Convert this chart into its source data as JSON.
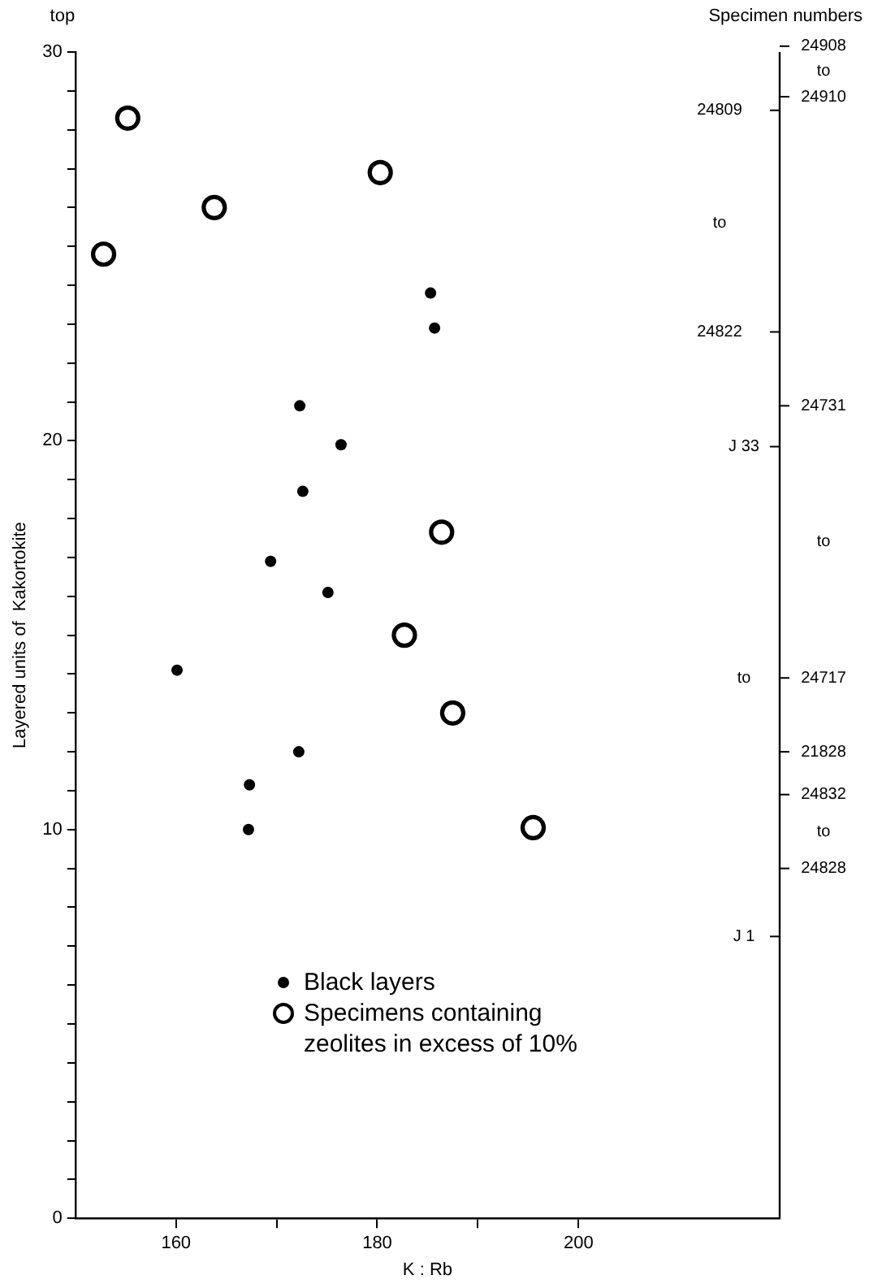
{
  "chart_data": {
    "type": "scatter",
    "xlabel": "K : Rb",
    "ylabel": "Layered units of  Kakortokite",
    "xlim": [
      150,
      220
    ],
    "xticks": [
      160,
      {
        "value": 170,
        "label": null
      },
      180,
      {
        "value": 190,
        "label": null
      },
      200
    ],
    "ylim": [
      0,
      30
    ],
    "yticks": [
      0,
      {
        "value": 1,
        "label": null
      },
      {
        "value": 2,
        "label": null
      },
      {
        "value": 3,
        "label": null
      },
      {
        "value": 4,
        "label": null
      },
      {
        "value": 5,
        "label": null
      },
      {
        "value": 6,
        "label": null
      },
      {
        "value": 7,
        "label": null
      },
      {
        "value": 8,
        "label": null
      },
      {
        "value": 9,
        "label": null
      },
      10,
      {
        "value": 11,
        "label": null
      },
      {
        "value": 12,
        "label": null
      },
      {
        "value": 13,
        "label": null
      },
      {
        "value": 14,
        "label": null
      },
      {
        "value": 15,
        "label": null
      },
      {
        "value": 16,
        "label": null
      },
      {
        "value": 17,
        "label": null
      },
      {
        "value": 18,
        "label": null
      },
      {
        "value": 19,
        "label": null
      },
      20,
      {
        "value": 21,
        "label": null
      },
      {
        "value": 22,
        "label": null
      },
      {
        "value": 23,
        "label": null
      },
      {
        "value": 24,
        "label": null
      },
      {
        "value": 25,
        "label": null
      },
      {
        "value": 26,
        "label": null
      },
      {
        "value": 27,
        "label": null
      },
      {
        "value": 28,
        "label": null
      },
      {
        "value": 29,
        "label": null
      },
      30
    ],
    "marker": "circle",
    "legend": "bottom",
    "annotations": [
      "top",
      "Specimen numbers",
      "24908",
      "to",
      "24910",
      "24809",
      "to",
      "24822",
      "24731",
      "to",
      "24717",
      "J 33",
      "to",
      "J 1",
      "21828",
      "24832",
      "to",
      "24828"
    ],
    "series": [
      {
        "name": "Black layers",
        "color": "#000000",
        "x": [
          185.3,
          185.7,
          172.3,
          176.4,
          172.6,
          169.4,
          175.1,
          160.1,
          172.2,
          167.3,
          167.2
        ],
        "values": [
          23.8,
          22.9,
          20.9,
          19.9,
          18.7,
          16.9,
          16.1,
          14.1,
          12.0,
          11.15,
          10.0
        ]
      },
      {
        "name": "Specimens containing zeolites in excess of 10%",
        "color": "#000000",
        "x": [
          155.2,
          180.3,
          163.8,
          152.8,
          186.4,
          182.7,
          187.5,
          195.5
        ],
        "values": [
          28.3,
          26.9,
          26.0,
          24.8,
          17.65,
          15.0,
          13.0,
          10.05
        ]
      }
    ]
  }
}
